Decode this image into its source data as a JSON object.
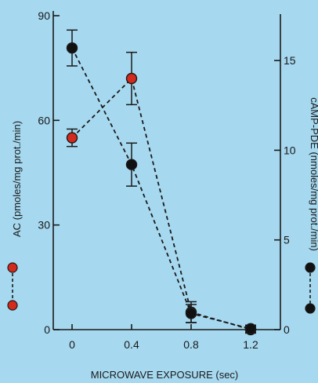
{
  "chart_data": {
    "type": "line",
    "x": [
      0,
      0.4,
      0.8,
      1.2
    ],
    "x_ticks": [
      "0",
      "0.4",
      "0.8",
      "1.2"
    ],
    "xlabel": "MICROWAVE EXPOSURE (sec)",
    "xlim": [
      0,
      1.2
    ],
    "grid": false,
    "left_axis": {
      "label": "AC (pmoles/mg prot./min)",
      "ylim": [
        0,
        90
      ],
      "ticks": [
        "0",
        "30",
        "60",
        "90"
      ]
    },
    "right_axis": {
      "label": "cAMP-PDE (nmoles/mg prot./min)",
      "ylim": [
        0,
        17.5
      ],
      "ticks": [
        "0",
        "5",
        "10",
        "15"
      ]
    },
    "series": [
      {
        "key": "AC",
        "axis": "left",
        "marker_color": "#d42a1c",
        "values": [
          55,
          72,
          5,
          0
        ],
        "error": [
          2.5,
          7.5,
          3,
          1
        ]
      },
      {
        "key": "cAMP-PDE",
        "axis": "right",
        "marker_color": "#111111",
        "values": [
          15.7,
          9.2,
          0.9,
          0.05
        ],
        "error": [
          1,
          1.2,
          0.5,
          0.2
        ]
      }
    ]
  }
}
